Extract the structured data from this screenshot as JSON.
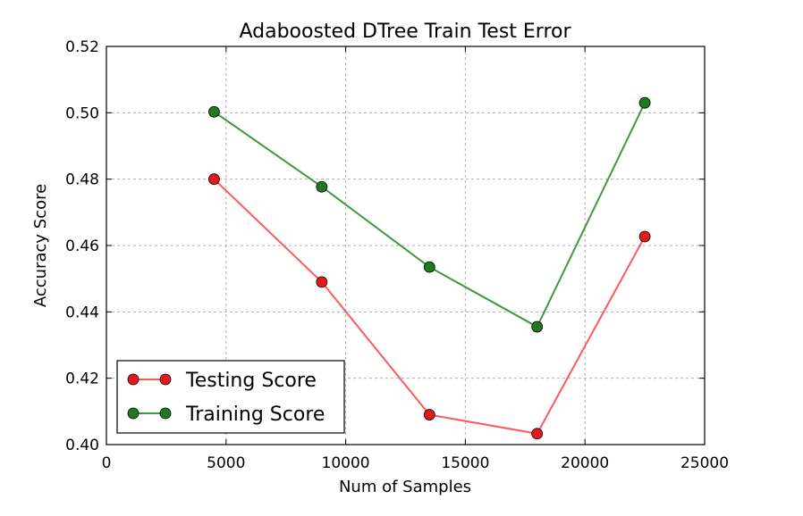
{
  "chart_data": {
    "type": "line",
    "title": "Adaboosted DTree Train Test Error",
    "xlabel": "Num of Samples",
    "ylabel": "Accuracy Score",
    "xlim": [
      0,
      25000
    ],
    "ylim": [
      0.4,
      0.52
    ],
    "xticks": [
      0,
      5000,
      10000,
      15000,
      20000,
      25000
    ],
    "xtick_labels": [
      "0",
      "5000",
      "10000",
      "15000",
      "20000",
      "25000"
    ],
    "yticks": [
      0.4,
      0.42,
      0.44,
      0.46,
      0.48,
      0.5,
      0.52
    ],
    "ytick_labels": [
      "0.40",
      "0.42",
      "0.44",
      "0.46",
      "0.48",
      "0.50",
      "0.52"
    ],
    "grid": true,
    "legend_position": "lower-left",
    "x": [
      4500,
      9000,
      13500,
      18000,
      22500
    ],
    "series": [
      {
        "name": "Testing Score",
        "line_color": "#ff5a5a",
        "marker_color": "#e31a1c",
        "values": [
          0.48,
          0.449,
          0.409,
          0.4033,
          0.4627
        ]
      },
      {
        "name": "Training Score",
        "line_color": "#3c9a3c",
        "marker_color": "#1f7a1f",
        "values": [
          0.5003,
          0.4777,
          0.4535,
          0.4355,
          0.503
        ]
      }
    ]
  }
}
